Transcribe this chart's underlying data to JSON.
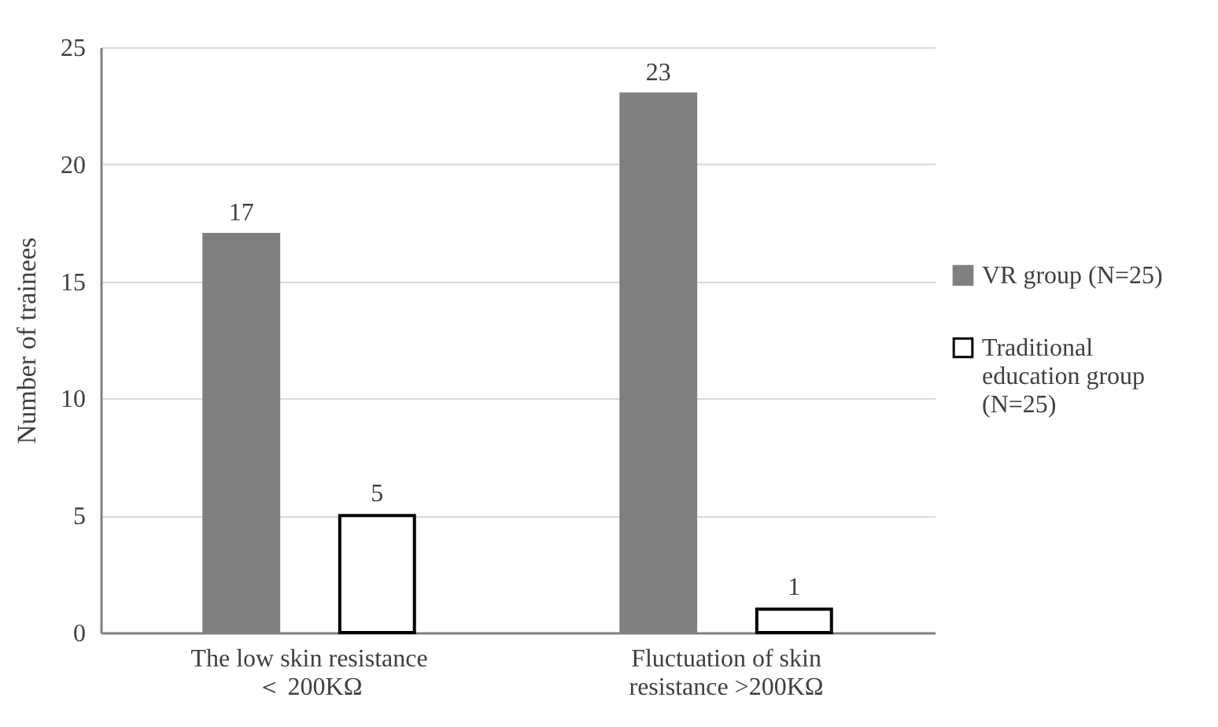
{
  "chart_data": {
    "type": "bar",
    "ylabel": "Number of trainees",
    "categories": [
      "The low skin resistance ＜ 200KΩ",
      "Fluctuation of skin resistance >200KΩ"
    ],
    "series": [
      {
        "name": "VR group (N=25)",
        "color": "#808080",
        "values": [
          17,
          23
        ]
      },
      {
        "name": "Traditional education group (N=25)",
        "color": "#ffffff",
        "values": [
          5,
          1
        ]
      }
    ],
    "ylim": [
      0,
      25
    ],
    "yticks": [
      0,
      5,
      10,
      15,
      20,
      25
    ],
    "grid": "y",
    "legend": "right",
    "data_labels": true
  }
}
